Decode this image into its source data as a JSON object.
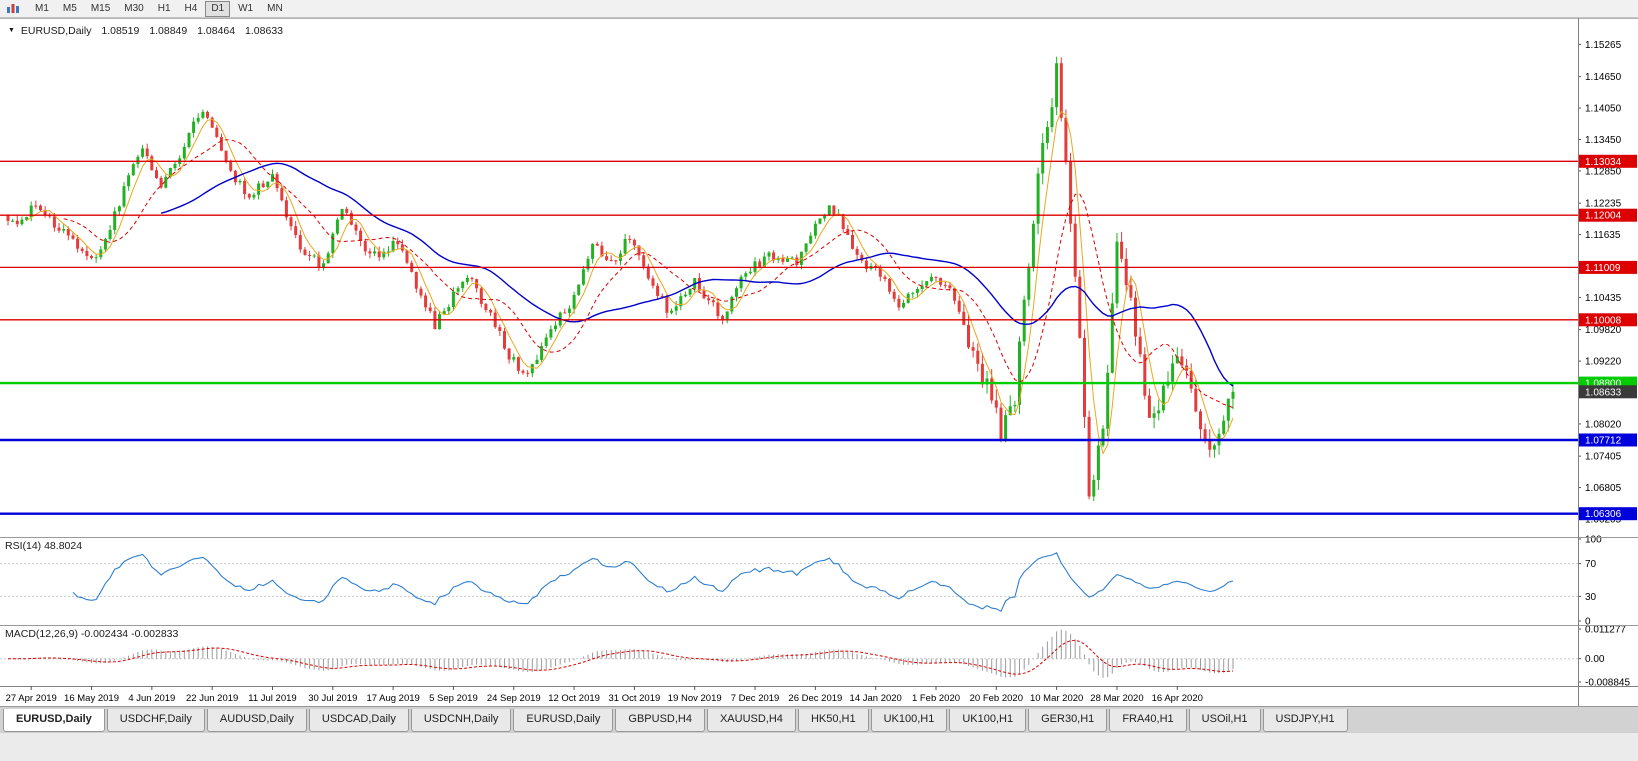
{
  "toolbar": {
    "icons": [
      {
        "name": "charts-icon"
      }
    ],
    "timeframes": [
      "M1",
      "M5",
      "M15",
      "M30",
      "H1",
      "H4",
      "D1",
      "W1",
      "MN"
    ],
    "selected_timeframe": "D1"
  },
  "main_chart": {
    "dropdown_icon": "▼",
    "symbol": "EURUSD,Daily",
    "open": "1.08519",
    "high": "1.08849",
    "low": "1.08464",
    "close": "1.08633",
    "price_axis_ticks": [
      "1.15265",
      "1.14650",
      "1.14050",
      "1.13450",
      "1.12850",
      "1.12235",
      "1.11635",
      "1.11035",
      "1.10435",
      "1.09820",
      "1.09220",
      "1.08620",
      "1.08020",
      "1.07405",
      "1.06805",
      "1.06205"
    ],
    "date_axis_ticks": [
      "27 Apr 2019",
      "16 May 2019",
      "4 Jun 2019",
      "22 Jun 2019",
      "11 Jul 2019",
      "30 Jul 2019",
      "17 Aug 2019",
      "5 Sep 2019",
      "24 Sep 2019",
      "12 Oct 2019",
      "31 Oct 2019",
      "19 Nov 2019",
      "7 Dec 2019",
      "26 Dec 2019",
      "14 Jan 2020",
      "1 Feb 2020",
      "20 Feb 2020",
      "10 Mar 2020",
      "28 Mar 2020",
      "16 Apr 2020"
    ],
    "levels": [
      {
        "label": "1.13034",
        "price": 1.13034,
        "color": "#dd0000",
        "thickness": 1.3,
        "style": "line"
      },
      {
        "label": "1.12004",
        "price": 1.12004,
        "color": "#dd0000",
        "thickness": 1.3,
        "style": "line"
      },
      {
        "label": "1.11009",
        "price": 1.11009,
        "color": "#dd0000",
        "thickness": 1.3,
        "style": "line"
      },
      {
        "label": "1.10008",
        "price": 1.10008,
        "color": "#dd0000",
        "thickness": 1.3,
        "style": "line"
      },
      {
        "label": "1.08800",
        "price": 1.088,
        "color": "#00cc00",
        "thickness": 2.4,
        "style": "line"
      },
      {
        "label": "1.08633",
        "price": 1.08633,
        "color": "#3a3a3a",
        "thickness": 0,
        "style": "badge-only"
      },
      {
        "label": "1.07712",
        "price": 1.07712,
        "color": "#0000dd",
        "thickness": 2.4,
        "style": "line"
      },
      {
        "label": "1.06306",
        "price": 1.06306,
        "color": "#0000dd",
        "thickness": 2.4,
        "style": "line"
      }
    ]
  },
  "rsi_panel": {
    "label": "RSI(14) 48.8024",
    "axis_ticks": [
      {
        "value": 100,
        "label": "100"
      },
      {
        "value": 70,
        "label": "70"
      },
      {
        "value": 30,
        "label": "30"
      },
      {
        "value": 0,
        "label": "0"
      }
    ],
    "level_lines": [
      70,
      30
    ],
    "line_color": "#2f7fd0"
  },
  "macd_panel": {
    "label": "MACD(12,26,9) -0.002434 -0.002833",
    "axis_ticks": [
      {
        "value": 0.011277,
        "label": "0.011277"
      },
      {
        "value": 0,
        "label": "0.00"
      },
      {
        "value": -0.008845,
        "label": "-0.008845"
      }
    ],
    "histogram_color": "#9a9a9a",
    "signal_color": "#dd0000"
  },
  "tabs": [
    {
      "label": "EURUSD,Daily",
      "active": true
    },
    {
      "label": "USDCHF,Daily",
      "active": false
    },
    {
      "label": "AUDUSD,Daily",
      "active": false
    },
    {
      "label": "USDCAD,Daily",
      "active": false
    },
    {
      "label": "USDCNH,Daily",
      "active": false
    },
    {
      "label": "EURUSD,Daily",
      "active": false
    },
    {
      "label": "GBPUSD,H4",
      "active": false
    },
    {
      "label": "XAUUSD,H4",
      "active": false
    },
    {
      "label": "HK50,H1",
      "active": false
    },
    {
      "label": "UK100,H1",
      "active": false
    },
    {
      "label": "UK100,H1",
      "active": false
    },
    {
      "label": "GER30,H1",
      "active": false
    },
    {
      "label": "FRA40,H1",
      "active": false
    },
    {
      "label": "USOil,H1",
      "active": false
    },
    {
      "label": "USDJPY,H1",
      "active": false
    }
  ],
  "chart_data": {
    "type": "candlestick",
    "symbol": "EURUSD",
    "timeframe": "Daily",
    "visible_range": {
      "start": "27 Apr 2019",
      "end": "30 Apr 2020"
    },
    "price_range": [
      1.0588,
      1.1577
    ],
    "num_candles": 265,
    "candles_per_date_tick": 13,
    "first_tick_index": 5,
    "up_color": "#23b123",
    "down_color": "#e43b3b",
    "price_path_anchors": [
      [
        0,
        1.118
      ],
      [
        6,
        1.1215
      ],
      [
        19,
        1.1115
      ],
      [
        29,
        1.1335
      ],
      [
        33,
        1.125
      ],
      [
        42,
        1.1405
      ],
      [
        48,
        1.128
      ],
      [
        52,
        1.124
      ],
      [
        57,
        1.128
      ],
      [
        63,
        1.113
      ],
      [
        68,
        1.1105
      ],
      [
        72,
        1.1215
      ],
      [
        78,
        1.112
      ],
      [
        84,
        1.115
      ],
      [
        88,
        1.106
      ],
      [
        92,
        1.099
      ],
      [
        95,
        1.1035
      ],
      [
        99,
        1.1085
      ],
      [
        104,
        1.101
      ],
      [
        108,
        1.093
      ],
      [
        112,
        1.0895
      ],
      [
        117,
        1.0985
      ],
      [
        121,
        1.103
      ],
      [
        126,
        1.1145
      ],
      [
        130,
        1.111
      ],
      [
        134,
        1.116
      ],
      [
        138,
        1.1075
      ],
      [
        143,
        1.101
      ],
      [
        148,
        1.1075
      ],
      [
        154,
        1.1005
      ],
      [
        158,
        1.108
      ],
      [
        164,
        1.1125
      ],
      [
        170,
        1.1115
      ],
      [
        177,
        1.1225
      ],
      [
        181,
        1.116
      ],
      [
        184,
        1.1115
      ],
      [
        188,
        1.1085
      ],
      [
        192,
        1.1025
      ],
      [
        199,
        1.109
      ],
      [
        203,
        1.106
      ],
      [
        209,
        1.092
      ],
      [
        214,
        1.079
      ],
      [
        217,
        1.085
      ],
      [
        219,
        1.103
      ],
      [
        222,
        1.128
      ],
      [
        226,
        1.147
      ],
      [
        228,
        1.13
      ],
      [
        230,
        1.11
      ],
      [
        233,
        1.0655
      ],
      [
        236,
        1.081
      ],
      [
        239,
        1.113
      ],
      [
        242,
        1.104
      ],
      [
        246,
        1.0795
      ],
      [
        249,
        1.086
      ],
      [
        252,
        1.0915
      ],
      [
        255,
        1.087
      ],
      [
        259,
        1.0745
      ],
      [
        262,
        1.0815
      ],
      [
        264,
        1.0863
      ]
    ],
    "range_high": {
      "price": 1.1495,
      "near": "10 Mar 2020"
    },
    "range_low": {
      "price": 1.0636,
      "near": "23 Mar 2020"
    },
    "moving_averages": [
      {
        "period": 5,
        "color": "#e8a820",
        "width": 1,
        "dash": ""
      },
      {
        "period": 13,
        "color": "#dd0000",
        "width": 1,
        "dash": "4,3"
      },
      {
        "period": 34,
        "color": "#0000cc",
        "width": 1.4,
        "dash": ""
      }
    ],
    "indicators": {
      "rsi": {
        "period": 14,
        "last_value": 48.8024
      },
      "macd": {
        "fast": 12,
        "slow": 26,
        "signal": 9,
        "last_main": -0.002434,
        "last_signal": -0.002833
      }
    }
  }
}
